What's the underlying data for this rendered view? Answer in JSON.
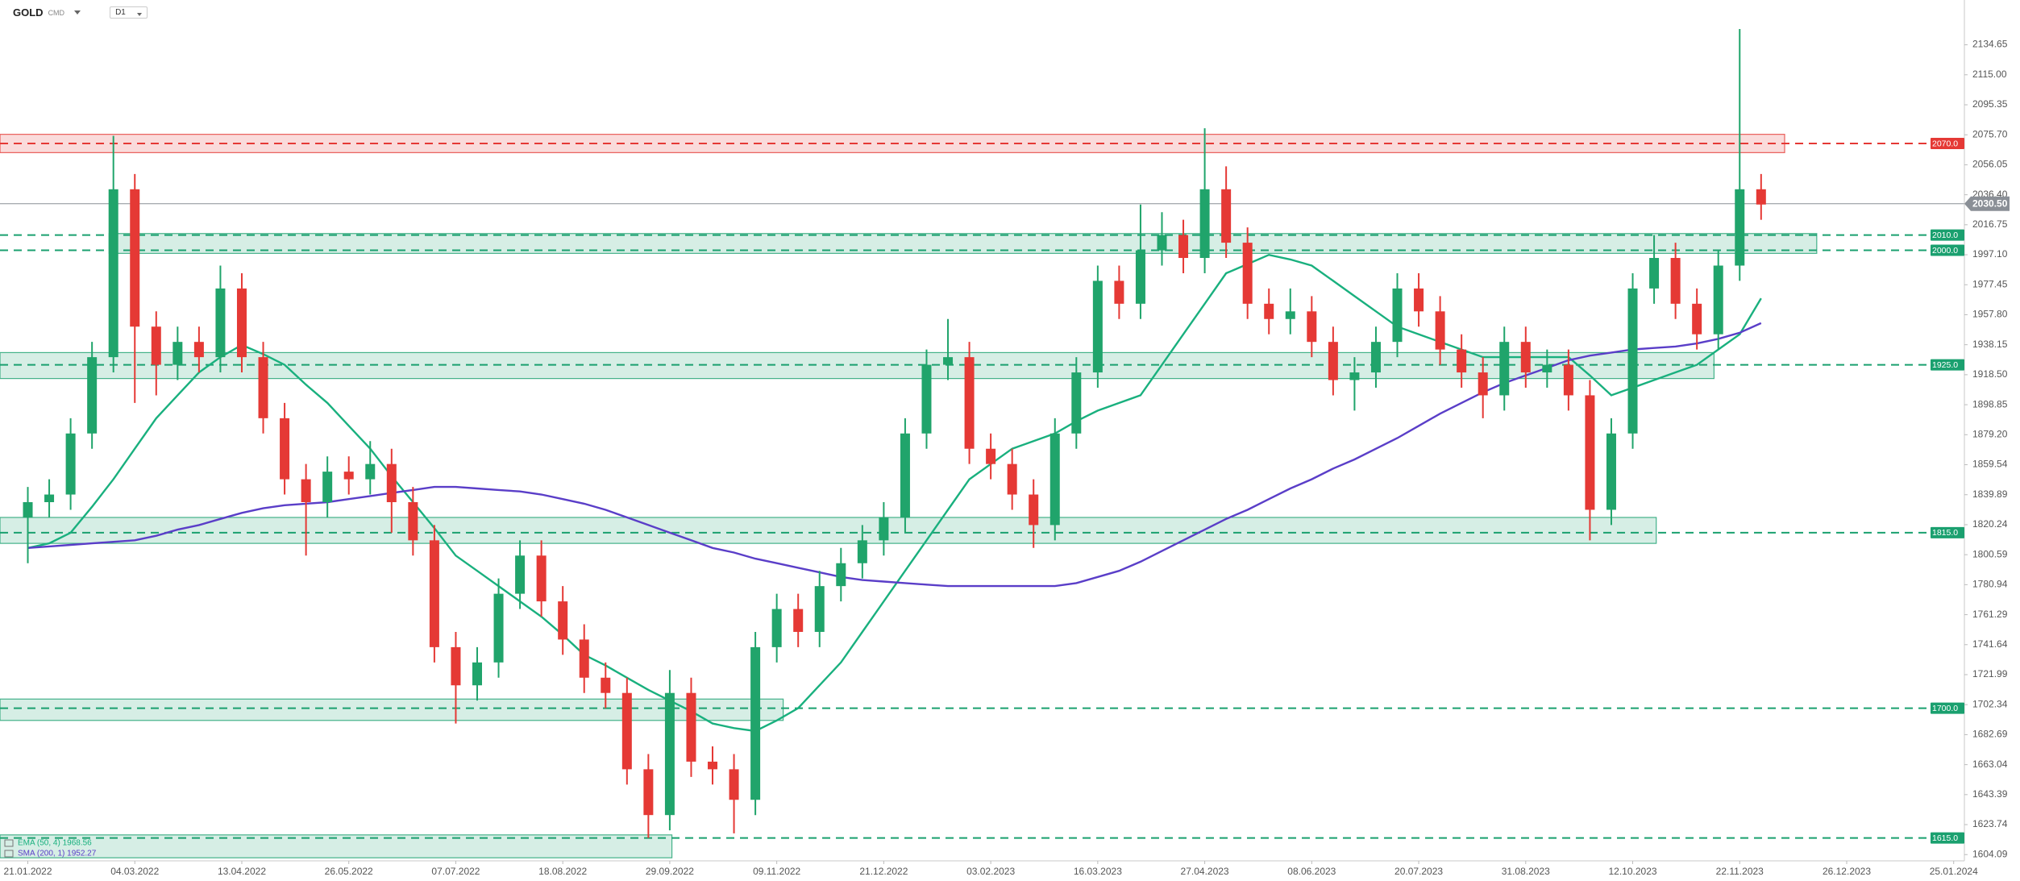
{
  "header": {
    "symbol": "GOLD",
    "market": "CMD",
    "timeframe": "D1"
  },
  "chart_data": {
    "type": "candlestick",
    "xlim": [
      -1.3,
      90.5
    ],
    "ylim": [
      1600,
      2164
    ],
    "xticks": [
      {
        "value": 0,
        "label": "21.01.2022"
      },
      {
        "value": 5,
        "label": "04.03.2022"
      },
      {
        "value": 10,
        "label": "13.04.2022"
      },
      {
        "value": 15,
        "label": "26.05.2022"
      },
      {
        "value": 20,
        "label": "07.07.2022"
      },
      {
        "value": 25,
        "label": "18.08.2022"
      },
      {
        "value": 30,
        "label": "29.09.2022"
      },
      {
        "value": 35,
        "label": "09.11.2022"
      },
      {
        "value": 40,
        "label": "21.12.2022"
      },
      {
        "value": 45,
        "label": "03.02.2023"
      },
      {
        "value": 50,
        "label": "16.03.2023"
      },
      {
        "value": 55,
        "label": "27.04.2023"
      },
      {
        "value": 60,
        "label": "08.06.2023"
      },
      {
        "value": 65,
        "label": "20.07.2023"
      },
      {
        "value": 70,
        "label": "31.08.2023"
      },
      {
        "value": 75,
        "label": "12.10.2023"
      },
      {
        "value": 80,
        "label": "22.11.2023"
      },
      {
        "value": 85,
        "label": "26.12.2023"
      },
      {
        "value": 90,
        "label": "25.01.2024"
      }
    ],
    "yticks": [
      2134.65,
      {
        "value": 2115,
        "label": "2115.00"
      },
      2095.35,
      {
        "value": 2075.7,
        "label": "2075.70"
      },
      2056.05,
      {
        "value": 2036.4,
        "label": "2036.40"
      },
      2016.75,
      {
        "value": 1997.1,
        "label": "1997.10"
      },
      1977.45,
      {
        "value": 1957.8,
        "label": "1957.80"
      },
      1938.15,
      {
        "value": 1918.5,
        "label": "1918.50"
      },
      1898.85,
      {
        "value": 1879.2,
        "label": "1879.20"
      },
      1859.54,
      1839.89,
      1820.24,
      1800.59,
      1780.94,
      1761.29,
      1741.64,
      1721.99,
      1702.34,
      1682.69,
      1663.04,
      1643.39,
      1623.74,
      1604.09
    ],
    "up_color": "#20a46b",
    "down_color": "#e53935",
    "open": [
      1825,
      1835,
      1840,
      1880,
      1930,
      2040,
      1950,
      1925,
      1940,
      1930,
      1975,
      1930,
      1890,
      1850,
      1835,
      1855,
      1850,
      1860,
      1835,
      1810,
      1740,
      1715,
      1730,
      1775,
      1800,
      1770,
      1745,
      1720,
      1710,
      1660,
      1630,
      1710,
      1665,
      1660,
      1640,
      1740,
      1765,
      1750,
      1780,
      1795,
      1810,
      1825,
      1880,
      1925,
      1930,
      1870,
      1860,
      1840,
      1820,
      1880,
      1920,
      1980,
      1965,
      2000,
      2010,
      1995,
      2040,
      2005,
      1965,
      1955,
      1960,
      1940,
      1915,
      1920,
      1940,
      1975,
      1960,
      1935,
      1920,
      1905,
      1940,
      1920,
      1925,
      1905,
      1830,
      1880,
      1975,
      1995,
      1965,
      1945,
      1990,
      2040
    ],
    "high": [
      1845,
      1850,
      1890,
      1940,
      2075,
      2050,
      1960,
      1950,
      1950,
      1990,
      1985,
      1940,
      1900,
      1860,
      1865,
      1865,
      1875,
      1870,
      1845,
      1820,
      1750,
      1740,
      1785,
      1810,
      1810,
      1780,
      1755,
      1730,
      1720,
      1670,
      1725,
      1720,
      1675,
      1670,
      1750,
      1775,
      1775,
      1790,
      1805,
      1820,
      1835,
      1890,
      1935,
      1955,
      1940,
      1880,
      1870,
      1850,
      1890,
      1930,
      1990,
      1990,
      2030,
      2025,
      2020,
      2080,
      2055,
      2015,
      1975,
      1975,
      1970,
      1950,
      1930,
      1950,
      1985,
      1985,
      1970,
      1945,
      1930,
      1950,
      1950,
      1935,
      1935,
      1915,
      1890,
      1985,
      2010,
      2005,
      1975,
      2000,
      2145,
      2050
    ],
    "low": [
      1795,
      1825,
      1830,
      1870,
      1920,
      1900,
      1905,
      1915,
      1920,
      1920,
      1920,
      1880,
      1840,
      1800,
      1825,
      1840,
      1840,
      1815,
      1800,
      1730,
      1690,
      1705,
      1720,
      1765,
      1760,
      1735,
      1710,
      1700,
      1650,
      1615,
      1620,
      1655,
      1650,
      1618,
      1630,
      1730,
      1740,
      1740,
      1770,
      1785,
      1800,
      1815,
      1870,
      1915,
      1860,
      1850,
      1830,
      1805,
      1810,
      1870,
      1910,
      1955,
      1955,
      1990,
      1985,
      1985,
      1995,
      1955,
      1945,
      1945,
      1930,
      1905,
      1895,
      1910,
      1930,
      1950,
      1925,
      1910,
      1890,
      1895,
      1910,
      1910,
      1895,
      1810,
      1820,
      1870,
      1965,
      1955,
      1935,
      1935,
      1980,
      2020
    ],
    "close": [
      1835,
      1840,
      1880,
      1930,
      2040,
      1950,
      1925,
      1940,
      1930,
      1975,
      1930,
      1890,
      1850,
      1835,
      1855,
      1850,
      1860,
      1835,
      1810,
      1740,
      1715,
      1730,
      1775,
      1800,
      1770,
      1745,
      1720,
      1710,
      1660,
      1630,
      1710,
      1665,
      1660,
      1640,
      1740,
      1765,
      1750,
      1780,
      1795,
      1810,
      1825,
      1880,
      1925,
      1930,
      1870,
      1860,
      1840,
      1820,
      1880,
      1920,
      1980,
      1965,
      2000,
      2010,
      1995,
      2040,
      2005,
      1965,
      1955,
      1960,
      1940,
      1915,
      1920,
      1940,
      1975,
      1960,
      1935,
      1920,
      1905,
      1940,
      1920,
      1925,
      1905,
      1830,
      1880,
      1975,
      1995,
      1965,
      1945,
      1990,
      2040,
      2030
    ],
    "series": [
      {
        "name": "EMA (50, 4) 1968.56",
        "color": "#19b07e",
        "values": [
          1805,
          1808,
          1815,
          1832,
          1850,
          1870,
          1890,
          1905,
          1920,
          1930,
          1938,
          1932,
          1925,
          1912,
          1900,
          1885,
          1870,
          1852,
          1835,
          1818,
          1800,
          1790,
          1780,
          1770,
          1760,
          1748,
          1735,
          1728,
          1720,
          1712,
          1705,
          1698,
          1690,
          1687,
          1685,
          1692,
          1700,
          1715,
          1730,
          1750,
          1770,
          1790,
          1810,
          1830,
          1850,
          1860,
          1870,
          1875,
          1880,
          1888,
          1895,
          1900,
          1905,
          1925,
          1945,
          1965,
          1985,
          1991,
          1997,
          1994,
          1990,
          1980,
          1970,
          1960,
          1950,
          1945,
          1940,
          1935,
          1930,
          1930,
          1930,
          1930,
          1930,
          1918,
          1905,
          1910,
          1915,
          1920,
          1925,
          1935,
          1945,
          1968.56
        ]
      },
      {
        "name": "SMA (200, 1) 1952.27",
        "color": "#5a3ec8",
        "values": [
          1805,
          1806,
          1807,
          1808,
          1809,
          1810,
          1813,
          1817,
          1820,
          1824,
          1828,
          1831,
          1833,
          1834,
          1835,
          1837,
          1839,
          1841,
          1843,
          1845,
          1845,
          1844,
          1843,
          1842,
          1840,
          1837,
          1834,
          1830,
          1825,
          1820,
          1815,
          1810,
          1805,
          1802,
          1798,
          1795,
          1792,
          1789,
          1786,
          1784,
          1783,
          1782,
          1781,
          1780,
          1780,
          1780,
          1780,
          1780,
          1780,
          1782,
          1786,
          1790,
          1796,
          1803,
          1810,
          1817,
          1824,
          1830,
          1837,
          1844,
          1850,
          1857,
          1863,
          1870,
          1877,
          1885,
          1893,
          1900,
          1907,
          1913,
          1918,
          1923,
          1928,
          1931,
          1933,
          1935,
          1936,
          1937,
          1939,
          1942,
          1946,
          1952.27
        ]
      }
    ],
    "zones": [
      {
        "x": [
          -1.3,
          82.1
        ],
        "y": [
          2064,
          2076
        ],
        "color": "#e53935"
      },
      {
        "x": [
          3.8,
          83.6
        ],
        "y": [
          1998,
          2011
        ],
        "color": "#1aa06f"
      },
      {
        "x": [
          -1.3,
          78.8
        ],
        "y": [
          1916,
          1933
        ],
        "color": "#1aa06f"
      },
      {
        "x": [
          -1.3,
          76.1
        ],
        "y": [
          1808,
          1825
        ],
        "color": "#1aa06f"
      },
      {
        "x": [
          -1.3,
          35.3
        ],
        "y": [
          1692,
          1706
        ],
        "color": "#1aa06f"
      },
      {
        "x": [
          -1.3,
          30.1
        ],
        "y": [
          1602,
          1617
        ],
        "color": "#1aa06f"
      }
    ],
    "levels": [
      {
        "value": 2070,
        "label": "2070.0",
        "color": "#e53935"
      },
      {
        "value": 2010,
        "label": "2010.0",
        "color": "#1aa06f"
      },
      {
        "value": 2000,
        "label": "2000.0",
        "color": "#1aa06f"
      },
      {
        "value": 1925,
        "label": "1925.0",
        "color": "#1aa06f"
      },
      {
        "value": 1815,
        "label": "1815.0",
        "color": "#1aa06f"
      },
      {
        "value": 1700,
        "label": "1700.0",
        "color": "#1aa06f"
      },
      {
        "value": 1615,
        "label": "1615.0",
        "color": "#1aa06f"
      }
    ],
    "current_price": {
      "value": 2030.5,
      "label": "2030.50",
      "color": "#8a8f96"
    }
  }
}
